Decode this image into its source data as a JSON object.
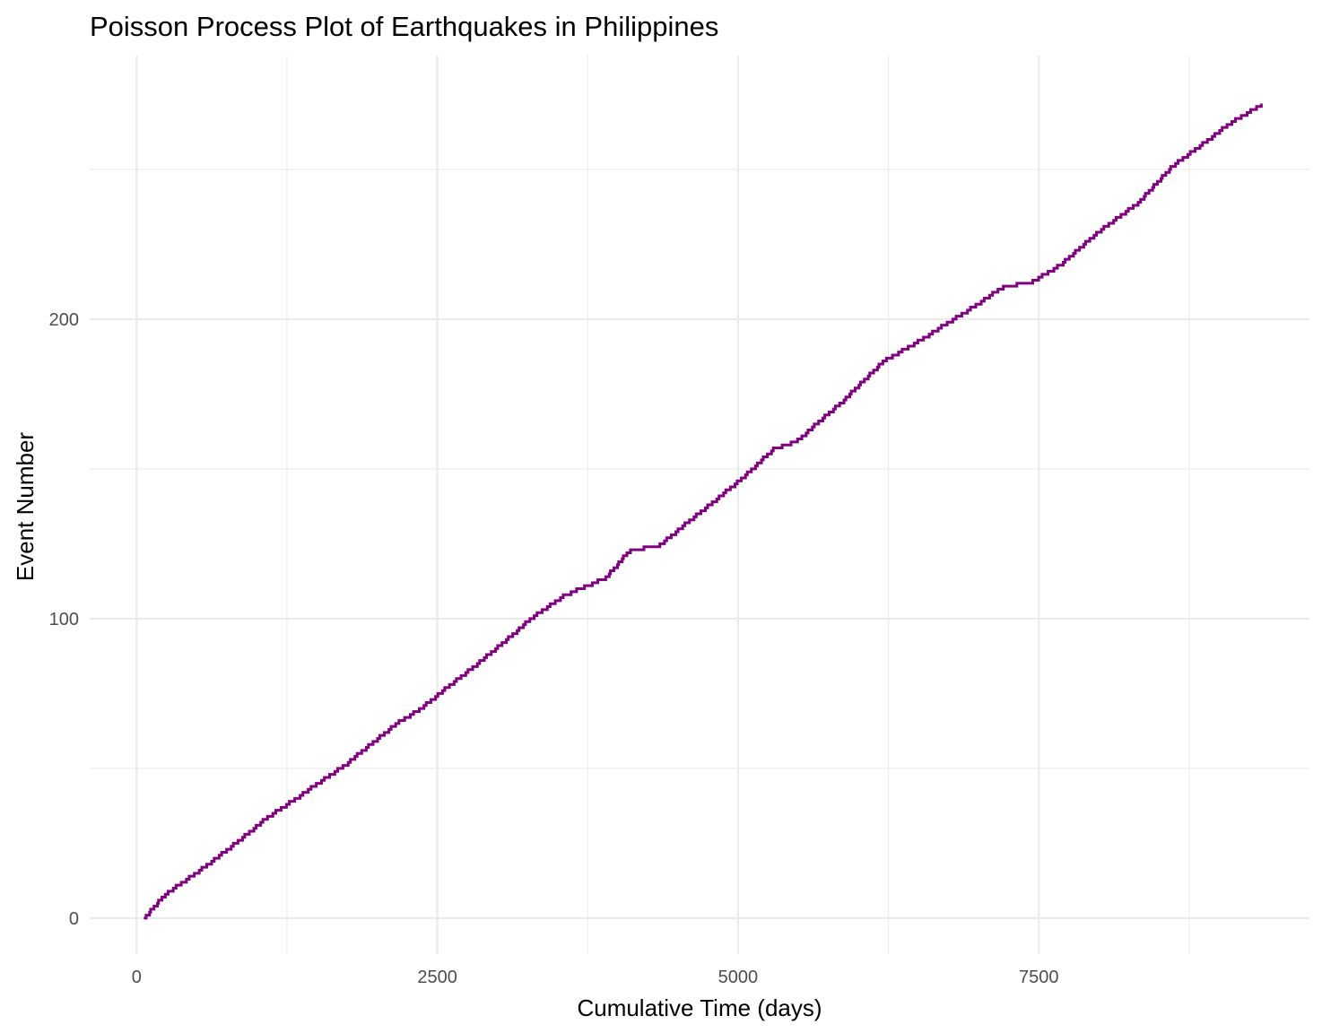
{
  "chart_data": {
    "type": "line",
    "step": true,
    "title": "Poisson Process Plot of Earthquakes in Philippines",
    "xlabel": "Cumulative Time (days)",
    "ylabel": "Event Number",
    "xlim": [
      -390,
      9750
    ],
    "ylim": [
      -12,
      288
    ],
    "x_ticks": [
      0,
      2500,
      5000,
      7500
    ],
    "x_tick_labels": [
      "0",
      "2500",
      "5000",
      "7500"
    ],
    "y_ticks": [
      0,
      100,
      200
    ],
    "y_tick_labels": [
      "0",
      "100",
      "200"
    ],
    "x_minor_ticks": [
      1250,
      3750,
      6250,
      8750
    ],
    "y_minor_ticks": [
      50,
      150,
      250
    ],
    "line_color": "#800080",
    "n_events": 272,
    "series": [
      {
        "name": "Event Number",
        "anchors_x": [
          60,
          230,
          480,
          750,
          1090,
          1350,
          1750,
          2150,
          2350,
          2950,
          3300,
          3550,
          3900,
          4100,
          4350,
          5000,
          5300,
          5500,
          5900,
          6200,
          6500,
          6900,
          7200,
          7450,
          7700,
          7950,
          8350,
          8600,
          9100,
          9350
        ],
        "anchors_y": [
          0,
          8,
          15,
          23,
          34,
          41,
          52,
          65,
          70,
          89,
          101,
          108,
          114,
          123,
          125,
          146,
          157,
          160,
          174,
          186,
          193,
          203,
          211,
          213,
          219,
          228,
          240,
          251,
          266,
          272
        ]
      }
    ]
  }
}
